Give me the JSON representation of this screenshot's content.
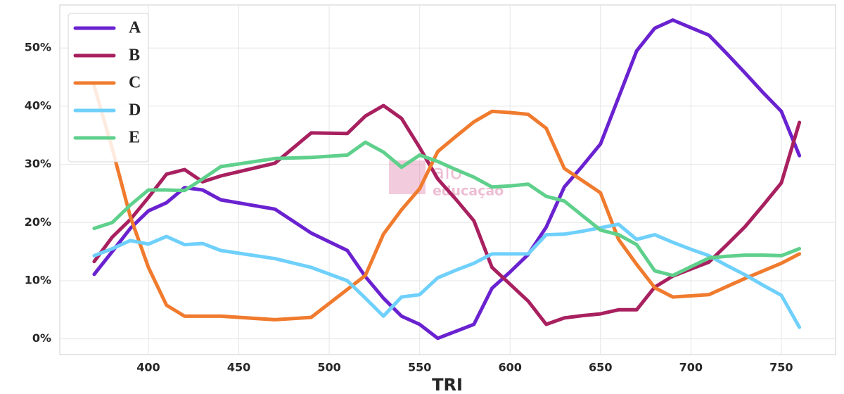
{
  "chart_data": {
    "type": "line",
    "x_label": "TRI",
    "watermark": [
      "alo",
      "educação"
    ],
    "x": [
      370,
      380,
      390,
      400,
      410,
      420,
      430,
      440,
      470,
      490,
      510,
      520,
      530,
      540,
      550,
      560,
      570,
      580,
      590,
      600,
      610,
      620,
      630,
      640,
      650,
      660,
      670,
      680,
      690,
      700,
      710,
      720,
      730,
      740,
      750,
      760
    ],
    "series": [
      {
        "name": "A",
        "color": "#6a22d0",
        "values": [
          11.1,
          15,
          19,
          22,
          23.4,
          26,
          25.6,
          23.9,
          22.3,
          18.2,
          15.2,
          10.7,
          7,
          3.9,
          2.5,
          0.1,
          1.3,
          2.5,
          8.7,
          11.5,
          14.5,
          19.2,
          26.1,
          29.7,
          33.5,
          41.5,
          49.5,
          53.4,
          54.8,
          53.5,
          52.2,
          49,
          45.7,
          42.3,
          39.1,
          31.5
        ]
      },
      {
        "name": "B",
        "color": "#a8205f",
        "values": [
          13.3,
          17.5,
          20.5,
          24.3,
          28.3,
          29.1,
          27,
          28,
          30.2,
          35.4,
          35.3,
          38.3,
          40.1,
          37.9,
          32.9,
          27.5,
          24,
          20.3,
          12.3,
          9.4,
          6.5,
          2.5,
          3.6,
          4,
          4.3,
          5,
          5,
          8.9,
          10.8,
          12,
          13.2,
          16.2,
          19.3,
          23,
          26.8,
          37.2
        ]
      },
      {
        "name": "C",
        "color": "#f07b2e",
        "values": [
          43.5,
          32.7,
          21,
          12.3,
          5.8,
          3.9,
          3.9,
          3.9,
          3.3,
          3.7,
          8.5,
          10.9,
          18,
          22.2,
          25.8,
          32.2,
          34.8,
          37.3,
          39.1,
          38.9,
          38.6,
          36.2,
          29.3,
          27.2,
          25.1,
          17.1,
          12.8,
          8.8,
          7.2,
          7.4,
          7.6,
          9,
          10.4,
          11.7,
          13,
          14.6
        ]
      },
      {
        "name": "D",
        "color": "#6fd0fb",
        "values": [
          14.3,
          15.5,
          16.9,
          16.3,
          17.6,
          16.2,
          16.4,
          15.2,
          13.8,
          12.3,
          10,
          7,
          3.9,
          7.2,
          7.6,
          10.5,
          11.8,
          13,
          14.6,
          14.6,
          14.6,
          17.9,
          18,
          18.5,
          19.1,
          19.7,
          17.1,
          17.9,
          16.6,
          15.4,
          14.3,
          12.6,
          11,
          9.2,
          7.5,
          2
        ]
      },
      {
        "name": "E",
        "color": "#5fd08c",
        "values": [
          19,
          20,
          23,
          25.6,
          25.6,
          25.5,
          27.5,
          29.6,
          31,
          31.2,
          31.6,
          33.8,
          32.1,
          29.5,
          31.6,
          30.5,
          29.1,
          27.8,
          26.1,
          26.3,
          26.6,
          24.5,
          23.7,
          21.2,
          18.7,
          17.9,
          16.2,
          11.7,
          10.9,
          12.4,
          13.9,
          14.2,
          14.4,
          14.4,
          14.3,
          15.5
        ]
      }
    ],
    "xlim": [
      351,
      780
    ],
    "ylim": [
      -2.7,
      57.4
    ],
    "xticks": [
      400,
      450,
      500,
      550,
      600,
      650,
      700,
      750
    ],
    "yticks": [
      {
        "value": 0,
        "label": "0%"
      },
      {
        "value": 10,
        "label": "10%"
      },
      {
        "value": 20,
        "label": "20%"
      },
      {
        "value": 30,
        "label": "30%"
      },
      {
        "value": 40,
        "label": "40%"
      },
      {
        "value": 50,
        "label": "50%"
      }
    ],
    "grid": true,
    "legend": "upper left"
  }
}
